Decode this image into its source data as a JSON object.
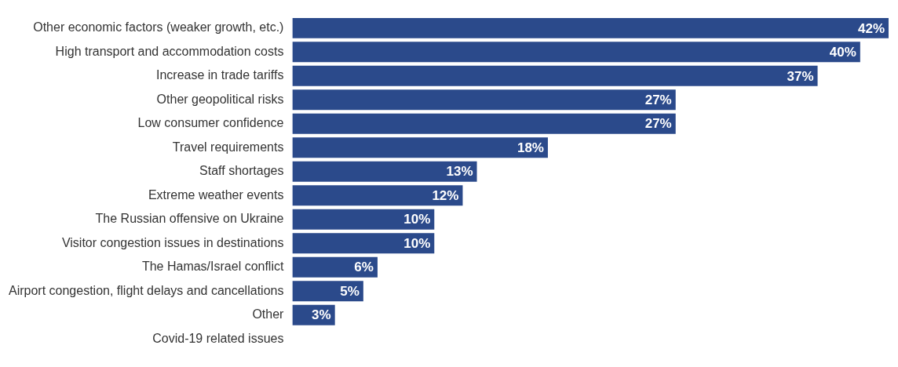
{
  "chart_data": {
    "type": "bar",
    "orientation": "horizontal",
    "tick_labels": "y",
    "color": "#2b4a8b",
    "categories": [
      "Other economic factors (weaker growth, etc.)",
      "High transport and accommodation costs",
      "Increase in trade tariffs",
      "Other geopolitical risks",
      "Low consumer confidence",
      "Travel requirements",
      "Staff shortages",
      "Extreme weather events",
      "The Russian offensive on Ukraine",
      "Visitor congestion issues in destinations",
      "The Hamas/Israel conflict",
      "Airport congestion, flight delays and cancellations",
      "Other",
      "Covid-19 related issues"
    ],
    "values": [
      42,
      40,
      37,
      27,
      27,
      18,
      13,
      12,
      10,
      10,
      6,
      5,
      3,
      0
    ],
    "value_labels": [
      "42%",
      "40%",
      "37%",
      "27%",
      "27%",
      "18%",
      "13%",
      "12%",
      "10%",
      "10%",
      "6%",
      "5%",
      "3%",
      null
    ]
  }
}
